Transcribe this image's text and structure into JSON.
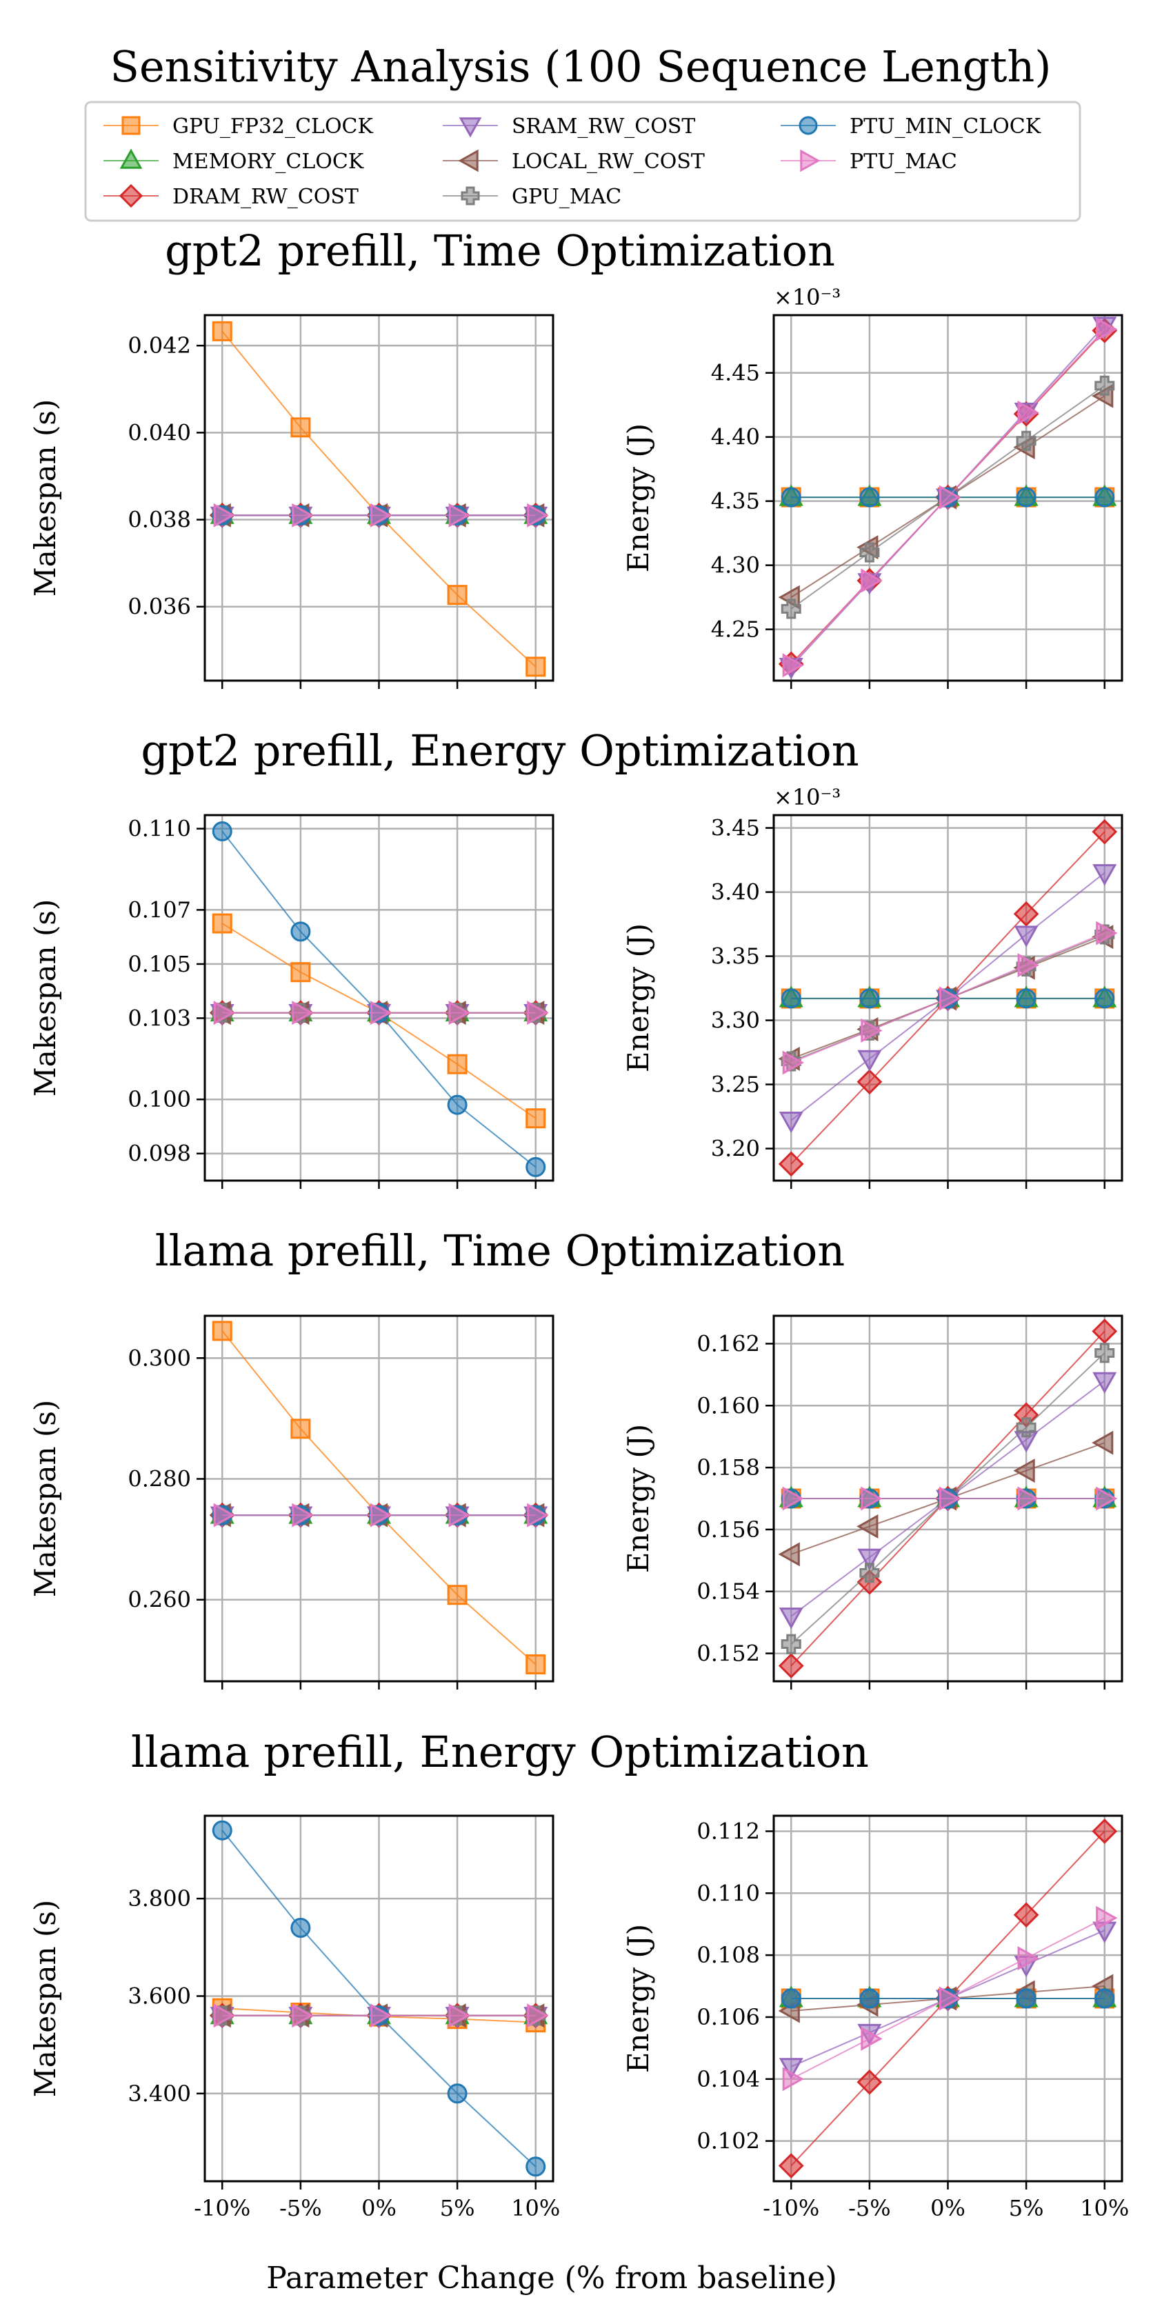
{
  "figure": {
    "title": "Sensitivity Analysis (100 Sequence Length)",
    "xlabel": "Parameter Change (% from baseline)"
  },
  "legend": {
    "location": "top",
    "entries": [
      {
        "name": "GPU_FP32_CLOCK",
        "color": "#ff7f0e",
        "marker": "square"
      },
      {
        "name": "MEMORY_CLOCK",
        "color": "#2ca02c",
        "marker": "triangle-up"
      },
      {
        "name": "DRAM_RW_COST",
        "color": "#d62728",
        "marker": "diamond"
      },
      {
        "name": "SRAM_RW_COST",
        "color": "#9467bd",
        "marker": "triangle-down"
      },
      {
        "name": "LOCAL_RW_COST",
        "color": "#8c564b",
        "marker": "triangle-left"
      },
      {
        "name": "GPU_MAC",
        "color": "#7f7f7f",
        "marker": "plus"
      },
      {
        "name": "PTU_MIN_CLOCK",
        "color": "#1f77b4",
        "marker": "circle"
      },
      {
        "name": "PTU_MAC",
        "color": "#e377c2",
        "marker": "triangle-right"
      }
    ]
  },
  "chart_data": [
    {
      "type": "line",
      "row_title": "gpt2 prefill, Time Optimization",
      "ylabel": "Makespan (s)",
      "categories": [
        "-10%",
        "-5%",
        "0%",
        "5%",
        "10%"
      ],
      "ylim": [
        0.0343,
        0.0427
      ],
      "yticks": [
        0.036,
        0.038,
        0.04,
        0.042
      ],
      "yticklabels": [
        "0.036",
        "0.038",
        "0.040",
        "0.042"
      ],
      "series": [
        {
          "name": "GPU_FP32_CLOCK",
          "values": [
            0.04233,
            0.04012,
            0.0381,
            0.03627,
            0.03462
          ]
        },
        {
          "name": "MEMORY_CLOCK",
          "values": [
            0.0381,
            0.0381,
            0.0381,
            0.0381,
            0.0381
          ]
        },
        {
          "name": "DRAM_RW_COST",
          "values": [
            0.0381,
            0.0381,
            0.0381,
            0.0381,
            0.0381
          ]
        },
        {
          "name": "SRAM_RW_COST",
          "values": [
            0.0381,
            0.0381,
            0.0381,
            0.0381,
            0.0381
          ]
        },
        {
          "name": "LOCAL_RW_COST",
          "values": [
            0.0381,
            0.0381,
            0.0381,
            0.0381,
            0.0381
          ]
        },
        {
          "name": "GPU_MAC",
          "values": [
            0.0381,
            0.0381,
            0.0381,
            0.0381,
            0.0381
          ]
        },
        {
          "name": "PTU_MIN_CLOCK",
          "values": [
            0.0381,
            0.0381,
            0.0381,
            0.0381,
            0.0381
          ]
        },
        {
          "name": "PTU_MAC",
          "values": [
            0.0381,
            0.0381,
            0.0381,
            0.0381,
            0.0381
          ]
        }
      ]
    },
    {
      "type": "line",
      "ylabel": "Energy (J)",
      "exponent_label": "×10⁻³",
      "categories": [
        "-10%",
        "-5%",
        "0%",
        "5%",
        "10%"
      ],
      "ylim": [
        4.21,
        4.495
      ],
      "yticks": [
        4.25,
        4.3,
        4.35,
        4.4,
        4.45
      ],
      "yticklabels": [
        "4.25",
        "4.30",
        "4.35",
        "4.40",
        "4.45"
      ],
      "series": [
        {
          "name": "GPU_FP32_CLOCK",
          "values": [
            4.353,
            4.353,
            4.353,
            4.353,
            4.353
          ]
        },
        {
          "name": "MEMORY_CLOCK",
          "values": [
            4.353,
            4.353,
            4.353,
            4.353,
            4.353
          ]
        },
        {
          "name": "DRAM_RW_COST",
          "values": [
            4.223,
            4.288,
            4.353,
            4.418,
            4.483
          ]
        },
        {
          "name": "SRAM_RW_COST",
          "values": [
            4.221,
            4.287,
            4.353,
            4.42,
            4.487
          ]
        },
        {
          "name": "LOCAL_RW_COST",
          "values": [
            4.275,
            4.314,
            4.353,
            4.392,
            4.432
          ]
        },
        {
          "name": "GPU_MAC",
          "values": [
            4.266,
            4.31,
            4.353,
            4.397,
            4.44
          ]
        },
        {
          "name": "PTU_MIN_CLOCK",
          "values": [
            4.353,
            4.353,
            4.353,
            4.353,
            4.353
          ]
        },
        {
          "name": "PTU_MAC",
          "values": [
            4.222,
            4.288,
            4.353,
            4.419,
            4.484
          ]
        }
      ]
    },
    {
      "type": "line",
      "row_title": "gpt2 prefill, Energy Optimization",
      "ylabel": "Makespan (s)",
      "categories": [
        "-10%",
        "-5%",
        "0%",
        "5%",
        "10%"
      ],
      "ylim": [
        0.097,
        0.1105
      ],
      "yticks": [
        0.098,
        0.1,
        0.103,
        0.105,
        0.107,
        0.11
      ],
      "yticklabels": [
        "0.098",
        "0.100",
        "0.103",
        "0.105",
        "0.107",
        "0.110"
      ],
      "series": [
        {
          "name": "GPU_FP32_CLOCK",
          "values": [
            0.1065,
            0.1047,
            0.1032,
            0.1013,
            0.0993
          ]
        },
        {
          "name": "MEMORY_CLOCK",
          "values": [
            0.1032,
            0.1032,
            0.1032,
            0.1032,
            0.1032
          ]
        },
        {
          "name": "DRAM_RW_COST",
          "values": [
            0.1032,
            0.1032,
            0.1032,
            0.1032,
            0.1032
          ]
        },
        {
          "name": "SRAM_RW_COST",
          "values": [
            0.1032,
            0.1032,
            0.1032,
            0.1032,
            0.1032
          ]
        },
        {
          "name": "LOCAL_RW_COST",
          "values": [
            0.1032,
            0.1032,
            0.1032,
            0.1032,
            0.1032
          ]
        },
        {
          "name": "GPU_MAC",
          "values": [
            0.1032,
            0.1032,
            0.1032,
            0.1032,
            0.1032
          ]
        },
        {
          "name": "PTU_MIN_CLOCK",
          "values": [
            0.1099,
            0.1062,
            0.1032,
            0.0998,
            0.0975
          ]
        },
        {
          "name": "PTU_MAC",
          "values": [
            0.1032,
            0.1032,
            0.1032,
            0.1032,
            0.1032
          ]
        }
      ]
    },
    {
      "type": "line",
      "ylabel": "Energy (J)",
      "exponent_label": "×10⁻³",
      "categories": [
        "-10%",
        "-5%",
        "0%",
        "5%",
        "10%"
      ],
      "ylim": [
        3.175,
        3.46
      ],
      "yticks": [
        3.2,
        3.25,
        3.3,
        3.35,
        3.4,
        3.45
      ],
      "yticklabels": [
        "3.20",
        "3.25",
        "3.30",
        "3.35",
        "3.40",
        "3.45"
      ],
      "series": [
        {
          "name": "GPU_FP32_CLOCK",
          "values": [
            3.317,
            3.317,
            3.317,
            3.317,
            3.317
          ]
        },
        {
          "name": "MEMORY_CLOCK",
          "values": [
            3.317,
            3.317,
            3.317,
            3.317,
            3.317
          ]
        },
        {
          "name": "DRAM_RW_COST",
          "values": [
            3.188,
            3.252,
            3.317,
            3.383,
            3.447
          ]
        },
        {
          "name": "SRAM_RW_COST",
          "values": [
            3.222,
            3.27,
            3.317,
            3.367,
            3.415
          ]
        },
        {
          "name": "LOCAL_RW_COST",
          "values": [
            3.27,
            3.293,
            3.317,
            3.341,
            3.365
          ]
        },
        {
          "name": "GPU_MAC",
          "values": [
            3.268,
            3.292,
            3.317,
            3.342,
            3.367
          ]
        },
        {
          "name": "PTU_MIN_CLOCK",
          "values": [
            3.317,
            3.317,
            3.317,
            3.317,
            3.317
          ]
        },
        {
          "name": "PTU_MAC",
          "values": [
            3.267,
            3.292,
            3.317,
            3.343,
            3.368
          ]
        }
      ]
    },
    {
      "type": "line",
      "row_title": "llama prefill, Time Optimization",
      "ylabel": "Makespan (s)",
      "categories": [
        "-10%",
        "-5%",
        "0%",
        "5%",
        "10%"
      ],
      "ylim": [
        0.2465,
        0.307
      ],
      "yticks": [
        0.26,
        0.28,
        0.3
      ],
      "yticklabels": [
        "0.260",
        "0.280",
        "0.300"
      ],
      "series": [
        {
          "name": "GPU_FP32_CLOCK",
          "values": [
            0.3045,
            0.2883,
            0.274,
            0.2608,
            0.2493
          ]
        },
        {
          "name": "MEMORY_CLOCK",
          "values": [
            0.274,
            0.274,
            0.274,
            0.274,
            0.274
          ]
        },
        {
          "name": "DRAM_RW_COST",
          "values": [
            0.274,
            0.274,
            0.274,
            0.274,
            0.274
          ]
        },
        {
          "name": "SRAM_RW_COST",
          "values": [
            0.274,
            0.274,
            0.274,
            0.274,
            0.274
          ]
        },
        {
          "name": "LOCAL_RW_COST",
          "values": [
            0.274,
            0.274,
            0.274,
            0.274,
            0.274
          ]
        },
        {
          "name": "GPU_MAC",
          "values": [
            0.274,
            0.274,
            0.274,
            0.274,
            0.274
          ]
        },
        {
          "name": "PTU_MIN_CLOCK",
          "values": [
            0.274,
            0.274,
            0.274,
            0.274,
            0.274
          ]
        },
        {
          "name": "PTU_MAC",
          "values": [
            0.274,
            0.274,
            0.274,
            0.274,
            0.274
          ]
        }
      ]
    },
    {
      "type": "line",
      "ylabel": "Energy (J)",
      "categories": [
        "-10%",
        "-5%",
        "0%",
        "5%",
        "10%"
      ],
      "ylim": [
        0.1511,
        0.1629
      ],
      "yticks": [
        0.152,
        0.154,
        0.156,
        0.158,
        0.16,
        0.162
      ],
      "yticklabels": [
        "0.152",
        "0.154",
        "0.156",
        "0.158",
        "0.160",
        "0.162"
      ],
      "series": [
        {
          "name": "GPU_FP32_CLOCK",
          "values": [
            0.157,
            0.157,
            0.157,
            0.157,
            0.157
          ]
        },
        {
          "name": "MEMORY_CLOCK",
          "values": [
            0.157,
            0.157,
            0.157,
            0.157,
            0.157
          ]
        },
        {
          "name": "DRAM_RW_COST",
          "values": [
            0.1516,
            0.1543,
            0.157,
            0.1597,
            0.1624
          ]
        },
        {
          "name": "SRAM_RW_COST",
          "values": [
            0.1532,
            0.1551,
            0.157,
            0.1589,
            0.1608
          ]
        },
        {
          "name": "LOCAL_RW_COST",
          "values": [
            0.1552,
            0.1561,
            0.157,
            0.1579,
            0.1588
          ]
        },
        {
          "name": "GPU_MAC",
          "values": [
            0.1523,
            0.1546,
            0.157,
            0.1593,
            0.1617
          ]
        },
        {
          "name": "PTU_MIN_CLOCK",
          "values": [
            0.157,
            0.157,
            0.157,
            0.157,
            0.157
          ]
        },
        {
          "name": "PTU_MAC",
          "values": [
            0.157,
            0.157,
            0.157,
            0.157,
            0.157
          ]
        }
      ]
    },
    {
      "type": "line",
      "row_title": "llama prefill, Energy Optimization",
      "ylabel": "Makespan (s)",
      "categories": [
        "-10%",
        "-5%",
        "0%",
        "5%",
        "10%"
      ],
      "ylim": [
        3.22,
        3.97
      ],
      "yticks": [
        3.4,
        3.6,
        3.8
      ],
      "yticklabels": [
        "3.400",
        "3.600",
        "3.800"
      ],
      "series": [
        {
          "name": "GPU_FP32_CLOCK",
          "values": [
            3.575,
            3.566,
            3.558,
            3.553,
            3.546
          ]
        },
        {
          "name": "MEMORY_CLOCK",
          "values": [
            3.56,
            3.56,
            3.56,
            3.56,
            3.56
          ]
        },
        {
          "name": "DRAM_RW_COST",
          "values": [
            3.56,
            3.56,
            3.56,
            3.56,
            3.56
          ]
        },
        {
          "name": "SRAM_RW_COST",
          "values": [
            3.56,
            3.56,
            3.56,
            3.56,
            3.56
          ]
        },
        {
          "name": "LOCAL_RW_COST",
          "values": [
            3.56,
            3.56,
            3.56,
            3.56,
            3.56
          ]
        },
        {
          "name": "GPU_MAC",
          "values": [
            3.56,
            3.56,
            3.56,
            3.56,
            3.56
          ]
        },
        {
          "name": "PTU_MIN_CLOCK",
          "values": [
            3.94,
            3.74,
            3.56,
            3.4,
            3.25
          ]
        },
        {
          "name": "PTU_MAC",
          "values": [
            3.56,
            3.56,
            3.56,
            3.56,
            3.56
          ]
        }
      ]
    },
    {
      "type": "line",
      "ylabel": "Energy (J)",
      "categories": [
        "-10%",
        "-5%",
        "0%",
        "5%",
        "10%"
      ],
      "ylim": [
        0.1007,
        0.1125
      ],
      "yticks": [
        0.102,
        0.104,
        0.106,
        0.108,
        0.11,
        0.112
      ],
      "yticklabels": [
        "0.102",
        "0.104",
        "0.106",
        "0.108",
        "0.110",
        "0.112"
      ],
      "series": [
        {
          "name": "GPU_FP32_CLOCK",
          "values": [
            0.1066,
            0.1066,
            0.1066,
            0.1066,
            0.1066
          ]
        },
        {
          "name": "MEMORY_CLOCK",
          "values": [
            0.1066,
            0.1066,
            0.1066,
            0.1066,
            0.1066
          ]
        },
        {
          "name": "DRAM_RW_COST",
          "values": [
            0.1012,
            0.1039,
            0.1066,
            0.1093,
            0.112
          ]
        },
        {
          "name": "SRAM_RW_COST",
          "values": [
            0.1044,
            0.1055,
            0.1066,
            0.1077,
            0.1088
          ]
        },
        {
          "name": "LOCAL_RW_COST",
          "values": [
            0.1062,
            0.1064,
            0.1066,
            0.1068,
            0.107
          ]
        },
        {
          "name": "GPU_MAC",
          "values": [
            0.1066,
            0.1066,
            0.1066,
            0.1066,
            0.1066
          ]
        },
        {
          "name": "PTU_MIN_CLOCK",
          "values": [
            0.1066,
            0.1066,
            0.1066,
            0.1066,
            0.1066
          ]
        },
        {
          "name": "PTU_MAC",
          "values": [
            0.104,
            0.1053,
            0.1066,
            0.1079,
            0.1092
          ]
        }
      ]
    }
  ]
}
